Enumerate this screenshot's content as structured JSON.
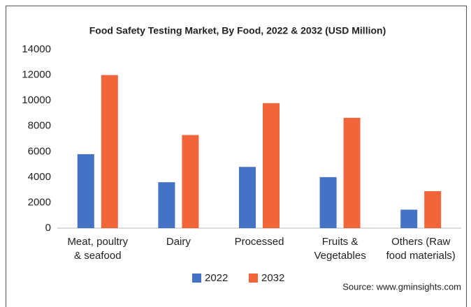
{
  "chart_data": {
    "type": "bar",
    "title": "Food Safety Testing Market, By Food, 2022 & 2032 (USD Million)",
    "categories": [
      "Meat, poultry\n& seafood",
      "Dairy",
      "Processed",
      "Fruits &\nVegetables",
      "Others (Raw\nfood materials)"
    ],
    "series": [
      {
        "name": "2022",
        "color": "#4472c4",
        "values": [
          5800,
          3600,
          4800,
          4000,
          1450
        ]
      },
      {
        "name": "2032",
        "color": "#f0663a",
        "values": [
          12000,
          7300,
          9800,
          8650,
          2900
        ]
      }
    ],
    "ylim": [
      0,
      14000
    ],
    "yticks": [
      0,
      2000,
      4000,
      6000,
      8000,
      10000,
      12000,
      14000
    ],
    "grid": false,
    "legend": "bottom",
    "source": "Source: www.gminsights.com"
  }
}
